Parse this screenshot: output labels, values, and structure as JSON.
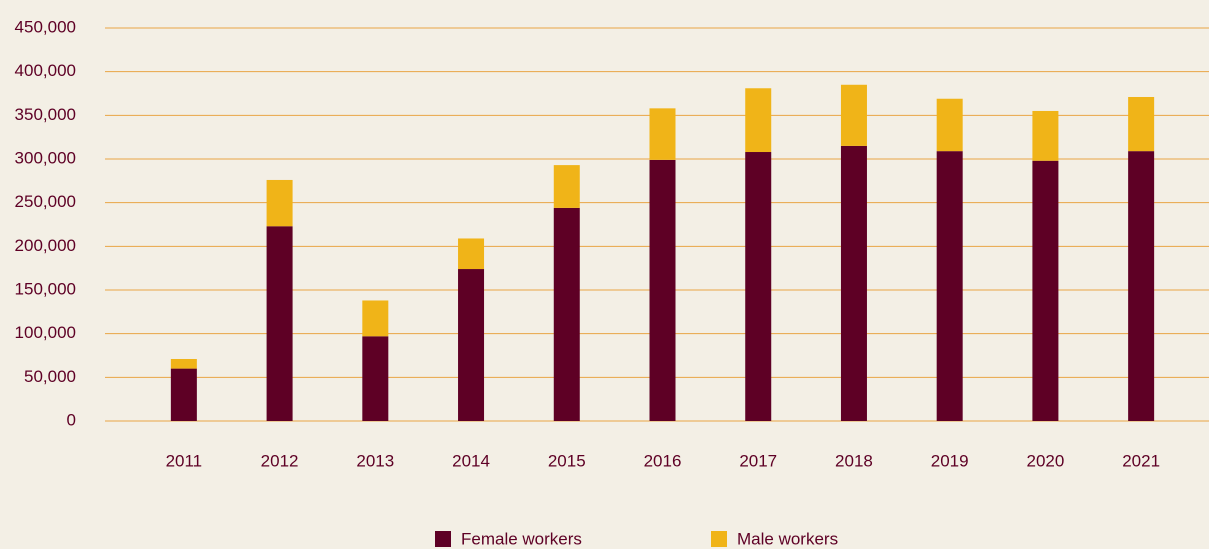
{
  "chart_data": {
    "type": "stacked_bar",
    "categories": [
      "2011",
      "2012",
      "2013",
      "2014",
      "2015",
      "2016",
      "2017",
      "2018",
      "2019",
      "2020",
      "2021"
    ],
    "series": [
      {
        "name": "Female workers",
        "color": "#5e0025",
        "values": [
          60000,
          223000,
          97000,
          174000,
          244000,
          299000,
          308000,
          315000,
          309000,
          298000,
          309000
        ]
      },
      {
        "name": "Male workers",
        "color": "#f0b418",
        "values": [
          11000,
          53000,
          41000,
          35000,
          49000,
          59000,
          73000,
          70000,
          60000,
          57000,
          62000
        ]
      }
    ],
    "ylim": [
      0,
      450000
    ],
    "yticks": [
      0,
      {
        "value": 50000,
        "label": "50,000"
      },
      {
        "value": 100000,
        "label": "100,000"
      },
      {
        "value": 150000,
        "label": "150,000"
      },
      {
        "value": 200000,
        "label": "200,000"
      },
      {
        "value": 250000,
        "label": "250,000"
      },
      {
        "value": 300000,
        "label": "300,000"
      },
      {
        "value": 350000,
        "label": "350,000"
      },
      {
        "value": 400000,
        "label": "400,000"
      },
      {
        "value": 450000,
        "label": "450,000"
      }
    ],
    "grid": true,
    "legend": "bottom"
  }
}
